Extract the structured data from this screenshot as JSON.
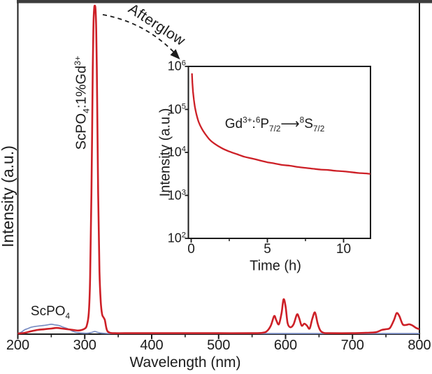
{
  "figure": {
    "background": "#ffffff",
    "top_bar_color": "#3d3d3d",
    "axis_color": "#1c1c1c",
    "main": {
      "xlabel": "Wavelength (nm)",
      "ylabel": "Intensity (a.u.)",
      "x_ticks": [
        200,
        300,
        400,
        500,
        600,
        700,
        800
      ],
      "x_minor_ticks": [
        250,
        350,
        450,
        550,
        650,
        750
      ],
      "labels": {
        "blue_series": "ScPO_{4}",
        "red_series": "ScPO_{4}:1%Gd^{3+}",
        "afterglow": "Afterglow"
      }
    },
    "inset": {
      "xlabel": "Time (h)",
      "ylabel": "Intensity (a.u.)",
      "x_ticks": [
        0,
        5,
        10
      ],
      "x_minor_ticks": [
        2.5,
        7.5
      ],
      "y_tick_labels": [
        "10^{2}",
        "10^{3}",
        "10^{4}",
        "10^{5}",
        "10^{6}"
      ],
      "annotation": "Gd^{3+}:^{6}P_{7/2}⟶^{8}S_{7/2}"
    }
  },
  "chart_data": [
    {
      "type": "line",
      "title": "Photoluminescence / afterglow emission spectra",
      "xlabel": "Wavelength (nm)",
      "ylabel": "Intensity (a.u.)",
      "xlim": [
        200,
        800
      ],
      "ylim": [
        0,
        1
      ],
      "x_ticks": [
        200,
        300,
        400,
        500,
        600,
        700,
        800
      ],
      "x_minor_ticks": [
        250,
        350,
        450,
        550,
        650,
        750
      ],
      "grid": false,
      "legend_position": "in-plot text labels",
      "y_units": "relative intensity (main 315 nm Gd peak = 1.0)",
      "series": [
        {
          "name": "ScPO4",
          "label": "ScPO_{4}",
          "color": "#788cc3",
          "points": [
            [
              200,
              0.002
            ],
            [
              205,
              0.006
            ],
            [
              210,
              0.013
            ],
            [
              215,
              0.017
            ],
            [
              220,
              0.021
            ],
            [
              228,
              0.024
            ],
            [
              236,
              0.026
            ],
            [
              244,
              0.028
            ],
            [
              250,
              0.03
            ],
            [
              256,
              0.028
            ],
            [
              262,
              0.026
            ],
            [
              268,
              0.021
            ],
            [
              274,
              0.017
            ],
            [
              280,
              0.011
            ],
            [
              286,
              0.006
            ],
            [
              292,
              0.004
            ],
            [
              298,
              0.003
            ],
            [
              304,
              0.003
            ],
            [
              310,
              0.005
            ],
            [
              315,
              0.008
            ],
            [
              320,
              0.005
            ],
            [
              326,
              0.003
            ],
            [
              334,
              0.002
            ],
            [
              350,
              0.002
            ],
            [
              400,
              0.002
            ],
            [
              500,
              0.002
            ],
            [
              600,
              0.002
            ],
            [
              700,
              0.002
            ],
            [
              800,
              0.002
            ]
          ]
        },
        {
          "name": "ScPO4:1%Gd3+",
          "label": "ScPO_{4}:1%Gd^{3+}",
          "color": "#cd2027",
          "points": [
            [
              200,
              0.002
            ],
            [
              210,
              0.004
            ],
            [
              220,
              0.009
            ],
            [
              230,
              0.013
            ],
            [
              240,
              0.015
            ],
            [
              250,
              0.017
            ],
            [
              258,
              0.019
            ],
            [
              266,
              0.017
            ],
            [
              274,
              0.015
            ],
            [
              282,
              0.013
            ],
            [
              290,
              0.011
            ],
            [
              296,
              0.013
            ],
            [
              300,
              0.017
            ],
            [
              303,
              0.026
            ],
            [
              306,
              0.064
            ],
            [
              308,
              0.17
            ],
            [
              310,
              0.43
            ],
            [
              312,
              0.81
            ],
            [
              313,
              0.94
            ],
            [
              314,
              0.99
            ],
            [
              315,
              1.0
            ],
            [
              316,
              0.99
            ],
            [
              317,
              0.94
            ],
            [
              318,
              0.81
            ],
            [
              320,
              0.43
            ],
            [
              322,
              0.19
            ],
            [
              324,
              0.096
            ],
            [
              326,
              0.06
            ],
            [
              328,
              0.051
            ],
            [
              330,
              0.043
            ],
            [
              332,
              0.021
            ],
            [
              334,
              0.009
            ],
            [
              338,
              0.004
            ],
            [
              345,
              0.003
            ],
            [
              360,
              0.003
            ],
            [
              400,
              0.003
            ],
            [
              450,
              0.003
            ],
            [
              500,
              0.003
            ],
            [
              550,
              0.003
            ],
            [
              565,
              0.004
            ],
            [
              572,
              0.009
            ],
            [
              578,
              0.026
            ],
            [
              583,
              0.055
            ],
            [
              586,
              0.043
            ],
            [
              590,
              0.03
            ],
            [
              594,
              0.064
            ],
            [
              597,
              0.106
            ],
            [
              600,
              0.085
            ],
            [
              603,
              0.034
            ],
            [
              607,
              0.021
            ],
            [
              612,
              0.03
            ],
            [
              617,
              0.06
            ],
            [
              620,
              0.051
            ],
            [
              624,
              0.026
            ],
            [
              628,
              0.032
            ],
            [
              632,
              0.026
            ],
            [
              636,
              0.017
            ],
            [
              640,
              0.047
            ],
            [
              644,
              0.066
            ],
            [
              648,
              0.032
            ],
            [
              652,
              0.011
            ],
            [
              657,
              0.004
            ],
            [
              665,
              0.003
            ],
            [
              700,
              0.003
            ],
            [
              720,
              0.004
            ],
            [
              735,
              0.006
            ],
            [
              744,
              0.013
            ],
            [
              750,
              0.015
            ],
            [
              756,
              0.019
            ],
            [
              762,
              0.043
            ],
            [
              766,
              0.064
            ],
            [
              770,
              0.055
            ],
            [
              775,
              0.03
            ],
            [
              780,
              0.028
            ],
            [
              785,
              0.03
            ],
            [
              790,
              0.026
            ],
            [
              795,
              0.019
            ],
            [
              800,
              0.015
            ]
          ]
        }
      ],
      "annotations": [
        "Afterglow (dashed arrow pointing to inset decay curve)"
      ]
    },
    {
      "type": "line",
      "title": "Afterglow decay (inset)",
      "xlabel": "Time (h)",
      "ylabel": "Intensity (a.u.)",
      "xlim": [
        0,
        11.8
      ],
      "ylim": [
        100,
        1000000
      ],
      "log_y": true,
      "x_ticks": [
        0,
        5,
        10
      ],
      "x_minor_ticks": [
        2.5,
        7.5
      ],
      "y_ticks": [
        100,
        1000,
        10000,
        100000,
        1000000
      ],
      "grid": false,
      "annotation": "Gd^{3+}:^{6}P_{7/2}⟶^{8}S_{7/2}",
      "series": [
        {
          "name": "afterglow-decay",
          "color": "#cd2027",
          "points": [
            [
              0.05,
              690000
            ],
            [
              0.08,
              420000
            ],
            [
              0.12,
              260000
            ],
            [
              0.18,
              166000
            ],
            [
              0.25,
              112000
            ],
            [
              0.35,
              76000
            ],
            [
              0.5,
              50000
            ],
            [
              0.7,
              35500
            ],
            [
              0.9,
              27500
            ],
            [
              1.2,
              20000
            ],
            [
              1.5,
              16200
            ],
            [
              2,
              12600
            ],
            [
              2.5,
              10500
            ],
            [
              3,
              9100
            ],
            [
              3.5,
              7900
            ],
            [
              4,
              7200
            ],
            [
              4.5,
              6500
            ],
            [
              5,
              5900
            ],
            [
              5.5,
              5500
            ],
            [
              6,
              5100
            ],
            [
              6.5,
              4900
            ],
            [
              7,
              4570
            ],
            [
              7.5,
              4370
            ],
            [
              8,
              4170
            ],
            [
              8.5,
              3980
            ],
            [
              9,
              3890
            ],
            [
              9.5,
              3720
            ],
            [
              10,
              3630
            ],
            [
              10.5,
              3470
            ],
            [
              11,
              3310
            ],
            [
              11.5,
              3240
            ],
            [
              11.75,
              3160
            ]
          ]
        }
      ]
    }
  ]
}
